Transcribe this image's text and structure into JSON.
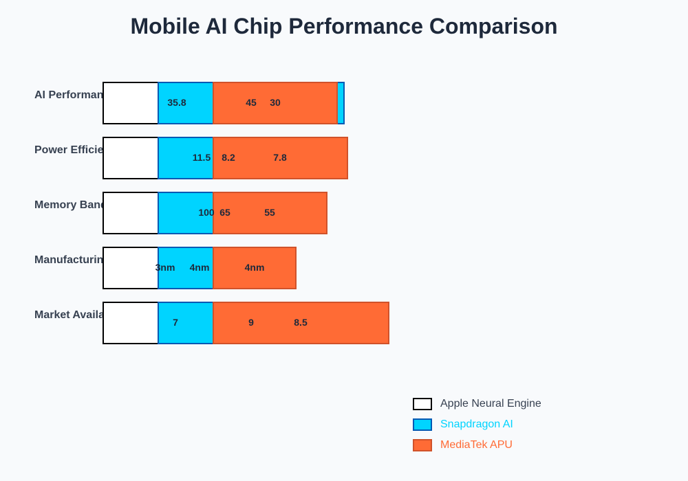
{
  "chart_data": {
    "type": "bar",
    "title": "Mobile AI Chip Performance Comparison",
    "categories": [
      "AI Performance",
      "Power Efficiency",
      "Memory Bandwidth",
      "Manufacturing Process",
      "Market Availability"
    ],
    "series": [
      {
        "name": "Apple Neural Engine",
        "color": "#ffffff"
      },
      {
        "name": "Snapdragon AI",
        "color": "#00d4ff"
      },
      {
        "name": "MediaTek APU",
        "color": "#ff6b35"
      }
    ],
    "value_labels": [
      [
        "35.8",
        "45",
        "30"
      ],
      [
        "11.5",
        "8.2",
        "7.8"
      ],
      [
        "100",
        "65",
        "55"
      ],
      [
        "3nm",
        "4nm",
        "4nm"
      ],
      [
        "7",
        "9",
        "8.5"
      ]
    ],
    "legend_position": "bottom-right"
  }
}
